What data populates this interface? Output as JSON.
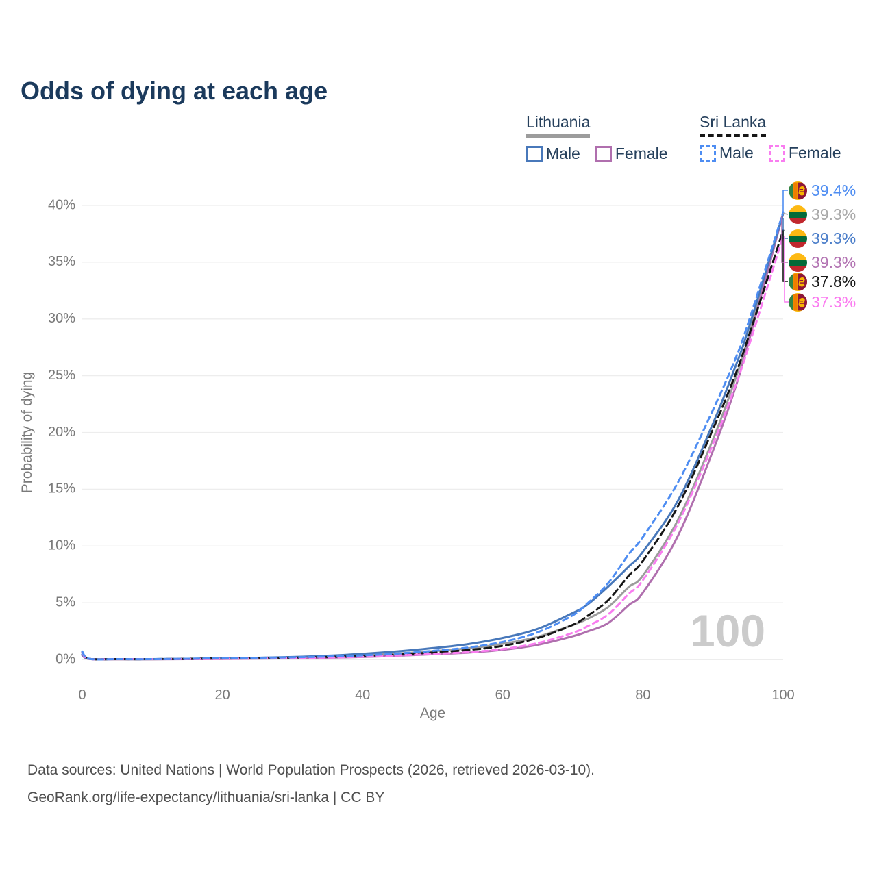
{
  "header": {
    "title": "Odds of dying at each age"
  },
  "legend": {
    "lithuania": {
      "label": "Lithuania",
      "male": "Male",
      "female": "Female"
    },
    "sri_lanka": {
      "label": "Sri Lanka",
      "male": "Male",
      "female": "Female"
    }
  },
  "colors": {
    "title": "#1b3a5c",
    "legend_text": "#26405c",
    "axis_text": "#7a7a7a",
    "grid": "#ededed",
    "zero_line": "#e2e2e2",
    "watermark": "#cbcbcb",
    "footer": "#4f4f4f",
    "lt_male": "#4878ba",
    "lt_female": "#b06fae",
    "lt_both": "#9c9c9c",
    "sl_male": "#4e8df2",
    "sl_female": "#f97df0",
    "sl_both": "#161616",
    "flag_lt_yellow": "#fdb913",
    "flag_lt_green": "#046a38",
    "flag_lt_red": "#c1272d",
    "flag_sl_maroon": "#8d153a",
    "flag_sl_green": "#308446",
    "flag_sl_orange": "#ef7d00",
    "flag_sl_gold": "#f7b500"
  },
  "chart_data": {
    "type": "line",
    "title": "Odds of dying at each age",
    "xlabel": "Age",
    "ylabel": "Probability of dying",
    "xlim": [
      0,
      100
    ],
    "ylim": [
      0,
      40
    ],
    "xticks": [
      0,
      20,
      40,
      60,
      80,
      100
    ],
    "yticks": [
      0,
      5,
      10,
      15,
      20,
      25,
      30,
      35,
      40
    ],
    "ytick_suffix": "%",
    "grid": true,
    "legend_position": "top-right",
    "age_watermark": "100",
    "x": [
      0,
      1,
      5,
      10,
      15,
      20,
      25,
      30,
      35,
      40,
      45,
      50,
      55,
      60,
      65,
      70,
      72,
      75,
      78,
      80,
      85,
      90,
      93,
      95,
      100
    ],
    "series": [
      {
        "id": "lt_both",
        "name": "Lithuania - Both sexes",
        "country": "lithuania",
        "style": "solid",
        "color": "#9c9c9c",
        "values": [
          0.42,
          0.05,
          0.02,
          0.02,
          0.05,
          0.08,
          0.11,
          0.16,
          0.24,
          0.36,
          0.52,
          0.73,
          0.98,
          1.38,
          2.0,
          3.05,
          3.55,
          4.6,
          6.4,
          7.4,
          12.3,
          19.4,
          24.4,
          28.3,
          39.3
        ]
      },
      {
        "id": "lt_female",
        "name": "Lithuania - Female",
        "country": "lithuania",
        "style": "solid",
        "color": "#b06fae",
        "values": [
          0.38,
          0.04,
          0.02,
          0.02,
          0.03,
          0.05,
          0.07,
          0.1,
          0.15,
          0.22,
          0.33,
          0.46,
          0.6,
          0.85,
          1.3,
          2.05,
          2.45,
          3.2,
          4.8,
          5.9,
          10.9,
          18.4,
          23.6,
          27.8,
          39.3
        ]
      },
      {
        "id": "lt_male",
        "name": "Lithuania - Male",
        "country": "lithuania",
        "style": "solid",
        "color": "#4878ba",
        "values": [
          0.45,
          0.05,
          0.03,
          0.03,
          0.06,
          0.1,
          0.15,
          0.22,
          0.33,
          0.5,
          0.72,
          1.0,
          1.35,
          1.9,
          2.7,
          4.1,
          4.8,
          6.4,
          8.2,
          9.5,
          14.0,
          20.8,
          25.5,
          29.0,
          39.3
        ]
      },
      {
        "id": "sl_both",
        "name": "Sri Lanka - Both sexes",
        "country": "sri-lanka",
        "style": "dashed",
        "color": "#161616",
        "values": [
          0.65,
          0.06,
          0.03,
          0.03,
          0.05,
          0.1,
          0.12,
          0.16,
          0.22,
          0.3,
          0.43,
          0.61,
          0.83,
          1.2,
          1.9,
          3.05,
          3.8,
          5.2,
          7.4,
          8.7,
          13.5,
          20.3,
          24.8,
          28.3,
          37.8
        ]
      },
      {
        "id": "sl_female",
        "name": "Sri Lanka - Female",
        "country": "sri-lanka",
        "style": "dashed",
        "color": "#f97df0",
        "values": [
          0.6,
          0.05,
          0.03,
          0.03,
          0.04,
          0.07,
          0.09,
          0.12,
          0.17,
          0.24,
          0.35,
          0.48,
          0.64,
          0.92,
          1.45,
          2.35,
          2.9,
          3.95,
          5.8,
          7.0,
          12.0,
          19.0,
          23.8,
          27.4,
          37.3
        ]
      },
      {
        "id": "sl_male",
        "name": "Sri Lanka - Male",
        "country": "sri-lanka",
        "style": "dashed",
        "color": "#4e8df2",
        "values": [
          0.7,
          0.06,
          0.03,
          0.03,
          0.06,
          0.12,
          0.15,
          0.19,
          0.26,
          0.36,
          0.52,
          0.76,
          1.05,
          1.55,
          2.4,
          3.9,
          4.9,
          6.7,
          9.3,
          10.8,
          15.6,
          22.0,
          26.2,
          29.6,
          39.4
        ]
      }
    ],
    "end_labels": [
      {
        "series": "sl_male",
        "flag": "sri-lanka",
        "value": "39.4%",
        "color": "#4e8df2"
      },
      {
        "series": "lt_both",
        "flag": "lithuania",
        "value": "39.3%",
        "color": "#a9a9a9"
      },
      {
        "series": "lt_male",
        "flag": "lithuania",
        "value": "39.3%",
        "color": "#4a7dc9"
      },
      {
        "series": "lt_female",
        "flag": "lithuania",
        "value": "39.3%",
        "color": "#b273b2"
      },
      {
        "series": "sl_both",
        "flag": "sri-lanka",
        "value": "37.8%",
        "color": "#1a1a1a"
      },
      {
        "series": "sl_female",
        "flag": "sri-lanka",
        "value": "37.3%",
        "color": "#fb7af0"
      }
    ]
  },
  "footer": {
    "line1": "Data sources: United Nations | World Population Prospects (2026, retrieved 2026-03-10).",
    "line2": "GeoRank.org/life-expectancy/lithuania/sri-lanka | CC BY"
  }
}
